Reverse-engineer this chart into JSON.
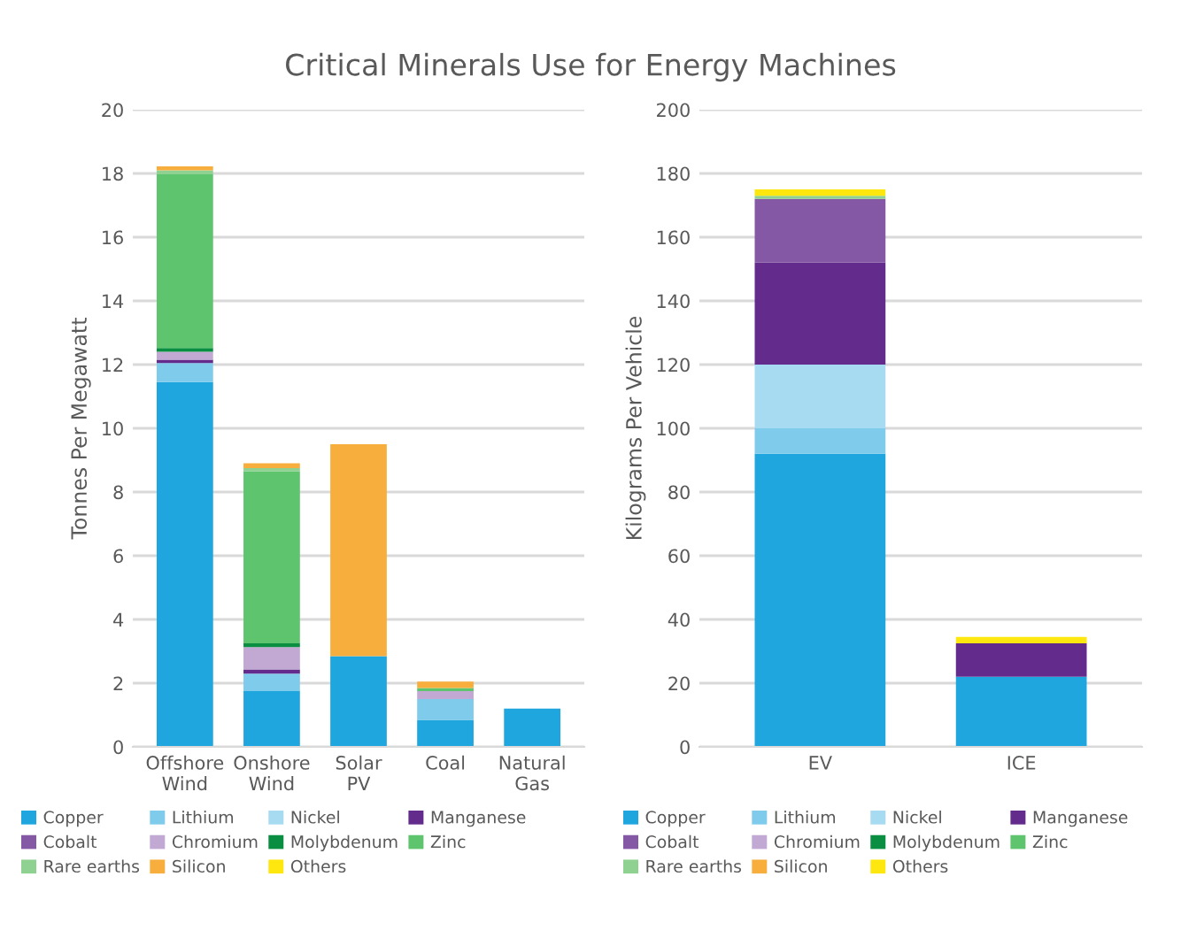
{
  "chart_data": [
    {
      "type": "bar",
      "title": "Critical Minerals Use for Energy Machines",
      "ylabel": "Tonnes Per Megawatt",
      "stacked": true,
      "categories": [
        "Offshore\nWind",
        "Onshore\nWind",
        "Solar\nPV",
        "Coal",
        "Natural\nGas"
      ],
      "ylim": [
        0,
        20
      ],
      "yticks": [
        0,
        2,
        4,
        6,
        8,
        10,
        12,
        14,
        16,
        18,
        20
      ],
      "grid": "y",
      "legend": "bottom",
      "series": [
        {
          "name": "Copper",
          "color": "#1fa6df",
          "values": [
            11.45,
            1.75,
            2.85,
            0.85,
            1.2
          ]
        },
        {
          "name": "Lithium",
          "color": "#7fcbec",
          "values": [
            0.6,
            0.55,
            null,
            0.65,
            null
          ]
        },
        {
          "name": "Nickel",
          "color": "#a6dbf1",
          "values": [
            null,
            null,
            null,
            null,
            null
          ]
        },
        {
          "name": "Manganese",
          "color": "#632b8c",
          "values": [
            0.1,
            0.13,
            null,
            null,
            null
          ]
        },
        {
          "name": "Cobalt",
          "color": "#8558a5",
          "values": [
            null,
            null,
            null,
            null,
            null
          ]
        },
        {
          "name": "Chromium",
          "color": "#c1a9d3",
          "values": [
            0.25,
            0.7,
            null,
            0.25,
            null
          ]
        },
        {
          "name": "Molybdenum",
          "color": "#0a8f42",
          "values": [
            0.12,
            0.12,
            null,
            null,
            null
          ]
        },
        {
          "name": "Zinc",
          "color": "#5ec56e",
          "values": [
            5.45,
            5.4,
            null,
            0.1,
            null
          ]
        },
        {
          "name": "Rare earths",
          "color": "#8ed190",
          "values": [
            0.13,
            0.1,
            null,
            null,
            null
          ]
        },
        {
          "name": "Silicon",
          "color": "#f8ae3c",
          "values": [
            0.12,
            0.15,
            6.65,
            0.2,
            null
          ]
        },
        {
          "name": "Others",
          "color": "#fde70e",
          "values": [
            null,
            null,
            null,
            null,
            null
          ]
        }
      ]
    },
    {
      "type": "bar",
      "ylabel": "Kilograms Per Vehicle",
      "stacked": true,
      "categories": [
        "EV",
        "ICE"
      ],
      "ylim": [
        0,
        200
      ],
      "yticks": [
        0,
        20,
        40,
        60,
        80,
        100,
        120,
        140,
        160,
        180,
        200
      ],
      "grid": "y",
      "legend": "bottom",
      "series": [
        {
          "name": "Copper",
          "color": "#1fa6df",
          "values": [
            92,
            22
          ]
        },
        {
          "name": "Lithium",
          "color": "#7fcbec",
          "values": [
            8,
            null
          ]
        },
        {
          "name": "Nickel",
          "color": "#a6dbf1",
          "values": [
            20,
            null
          ]
        },
        {
          "name": "Manganese",
          "color": "#632b8c",
          "values": [
            32,
            10.5
          ]
        },
        {
          "name": "Cobalt",
          "color": "#8558a5",
          "values": [
            20,
            null
          ]
        },
        {
          "name": "Chromium",
          "color": "#c1a9d3",
          "values": [
            null,
            null
          ]
        },
        {
          "name": "Molybdenum",
          "color": "#0a8f42",
          "values": [
            null,
            null
          ]
        },
        {
          "name": "Zinc",
          "color": "#5ec56e",
          "values": [
            null,
            null
          ]
        },
        {
          "name": "Rare earths",
          "color": "#8ed190",
          "values": [
            1,
            null
          ]
        },
        {
          "name": "Silicon",
          "color": "#f8ae3c",
          "values": [
            null,
            null
          ]
        },
        {
          "name": "Others",
          "color": "#fde70e",
          "values": [
            2,
            2
          ]
        }
      ]
    }
  ]
}
